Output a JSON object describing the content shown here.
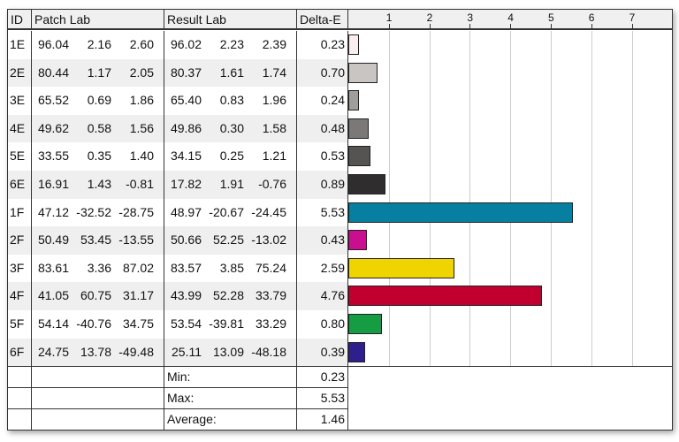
{
  "headers": {
    "id": "ID",
    "patch": "Patch Lab",
    "result": "Result Lab",
    "delta": "Delta-E"
  },
  "rows": [
    {
      "id": "1E",
      "patch": [
        "96.04",
        "2.16",
        "2.60"
      ],
      "result": [
        "96.02",
        "2.23",
        "2.39"
      ],
      "de": "0.23",
      "color": "#fbeeee"
    },
    {
      "id": "2E",
      "patch": [
        "80.44",
        "1.17",
        "2.05"
      ],
      "result": [
        "80.37",
        "1.61",
        "1.74"
      ],
      "de": "0.70",
      "color": "#c9c5c3"
    },
    {
      "id": "3E",
      "patch": [
        "65.52",
        "0.69",
        "1.86"
      ],
      "result": [
        "65.40",
        "0.83",
        "1.96"
      ],
      "de": "0.24",
      "color": "#a19d9b"
    },
    {
      "id": "4E",
      "patch": [
        "49.62",
        "0.58",
        "1.56"
      ],
      "result": [
        "49.86",
        "0.30",
        "1.58"
      ],
      "de": "0.48",
      "color": "#7b7977"
    },
    {
      "id": "5E",
      "patch": [
        "33.55",
        "0.35",
        "1.40"
      ],
      "result": [
        "34.15",
        "0.25",
        "1.21"
      ],
      "de": "0.53",
      "color": "#565453"
    },
    {
      "id": "6E",
      "patch": [
        "16.91",
        "1.43",
        "-0.81"
      ],
      "result": [
        "17.82",
        "1.91",
        "-0.76"
      ],
      "de": "0.89",
      "color": "#302d2f"
    },
    {
      "id": "1F",
      "patch": [
        "47.12",
        "-32.52",
        "-28.75"
      ],
      "result": [
        "48.97",
        "-20.67",
        "-24.45"
      ],
      "de": "5.53",
      "color": "#077fa0"
    },
    {
      "id": "2F",
      "patch": [
        "50.49",
        "53.45",
        "-13.55"
      ],
      "result": [
        "50.66",
        "52.25",
        "-13.02"
      ],
      "de": "0.43",
      "color": "#c90f8f"
    },
    {
      "id": "3F",
      "patch": [
        "83.61",
        "3.36",
        "87.02"
      ],
      "result": [
        "83.57",
        "3.85",
        "75.24"
      ],
      "de": "2.59",
      "color": "#f0d400"
    },
    {
      "id": "4F",
      "patch": [
        "41.05",
        "60.75",
        "31.17"
      ],
      "result": [
        "43.99",
        "52.28",
        "33.79"
      ],
      "de": "4.76",
      "color": "#c2002f"
    },
    {
      "id": "5F",
      "patch": [
        "54.14",
        "-40.76",
        "34.75"
      ],
      "result": [
        "53.54",
        "-39.81",
        "33.29"
      ],
      "de": "0.80",
      "color": "#169c42"
    },
    {
      "id": "6F",
      "patch": [
        "24.75",
        "13.78",
        "-49.48"
      ],
      "result": [
        "25.11",
        "13.09",
        "-48.18"
      ],
      "de": "0.39",
      "color": "#2e208c"
    }
  ],
  "summary": [
    {
      "label": "Min:",
      "value": "0.23"
    },
    {
      "label": "Max:",
      "value": "5.53"
    },
    {
      "label": "Average:",
      "value": "1.46"
    }
  ],
  "chart_data": {
    "type": "bar",
    "orientation": "horizontal",
    "categories": [
      "1E",
      "2E",
      "3E",
      "4E",
      "5E",
      "6E",
      "1F",
      "2F",
      "3F",
      "4F",
      "5F",
      "6F"
    ],
    "values": [
      0.23,
      0.7,
      0.24,
      0.48,
      0.53,
      0.89,
      5.53,
      0.43,
      2.59,
      4.76,
      0.8,
      0.39
    ],
    "xticks": [
      "1",
      "2",
      "3",
      "4",
      "5",
      "6",
      "7"
    ],
    "xlim": [
      0,
      8
    ],
    "grid": true
  }
}
